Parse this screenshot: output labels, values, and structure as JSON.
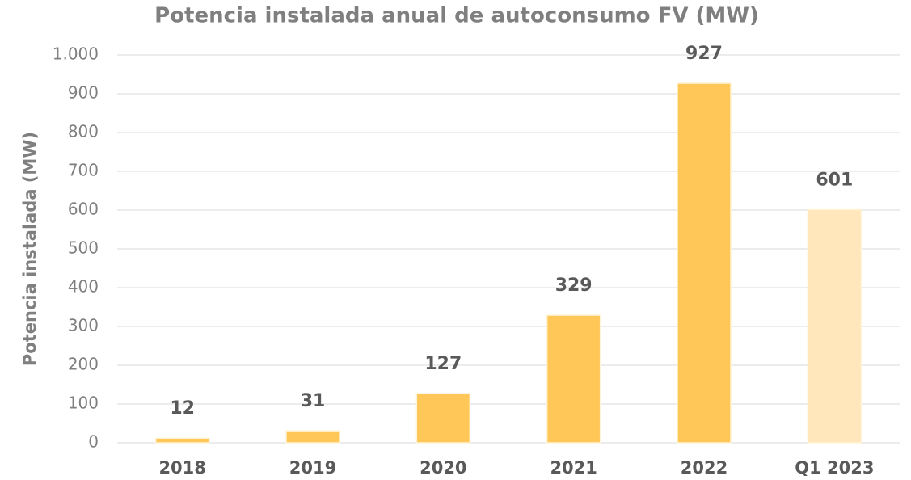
{
  "chart_data": {
    "type": "bar",
    "title": "Potencia instalada anual de autoconsumo FV (MW)",
    "y_label": "Potencia instalada (MW)",
    "categories": [
      "2018",
      "2019",
      "2020",
      "2021",
      "2022",
      "Q1 2023"
    ],
    "values": [
      12,
      31,
      127,
      329,
      927,
      601
    ],
    "colors": [
      "#ffc658",
      "#ffc658",
      "#ffc658",
      "#ffc658",
      "#ffc658",
      "#ffe6bb"
    ],
    "ylim": [
      0,
      1000
    ],
    "yticks": [
      0,
      100,
      200,
      300,
      400,
      500,
      600,
      700,
      800,
      900,
      {
        "value": 1000,
        "label": "1.000"
      }
    ],
    "grid": true
  }
}
